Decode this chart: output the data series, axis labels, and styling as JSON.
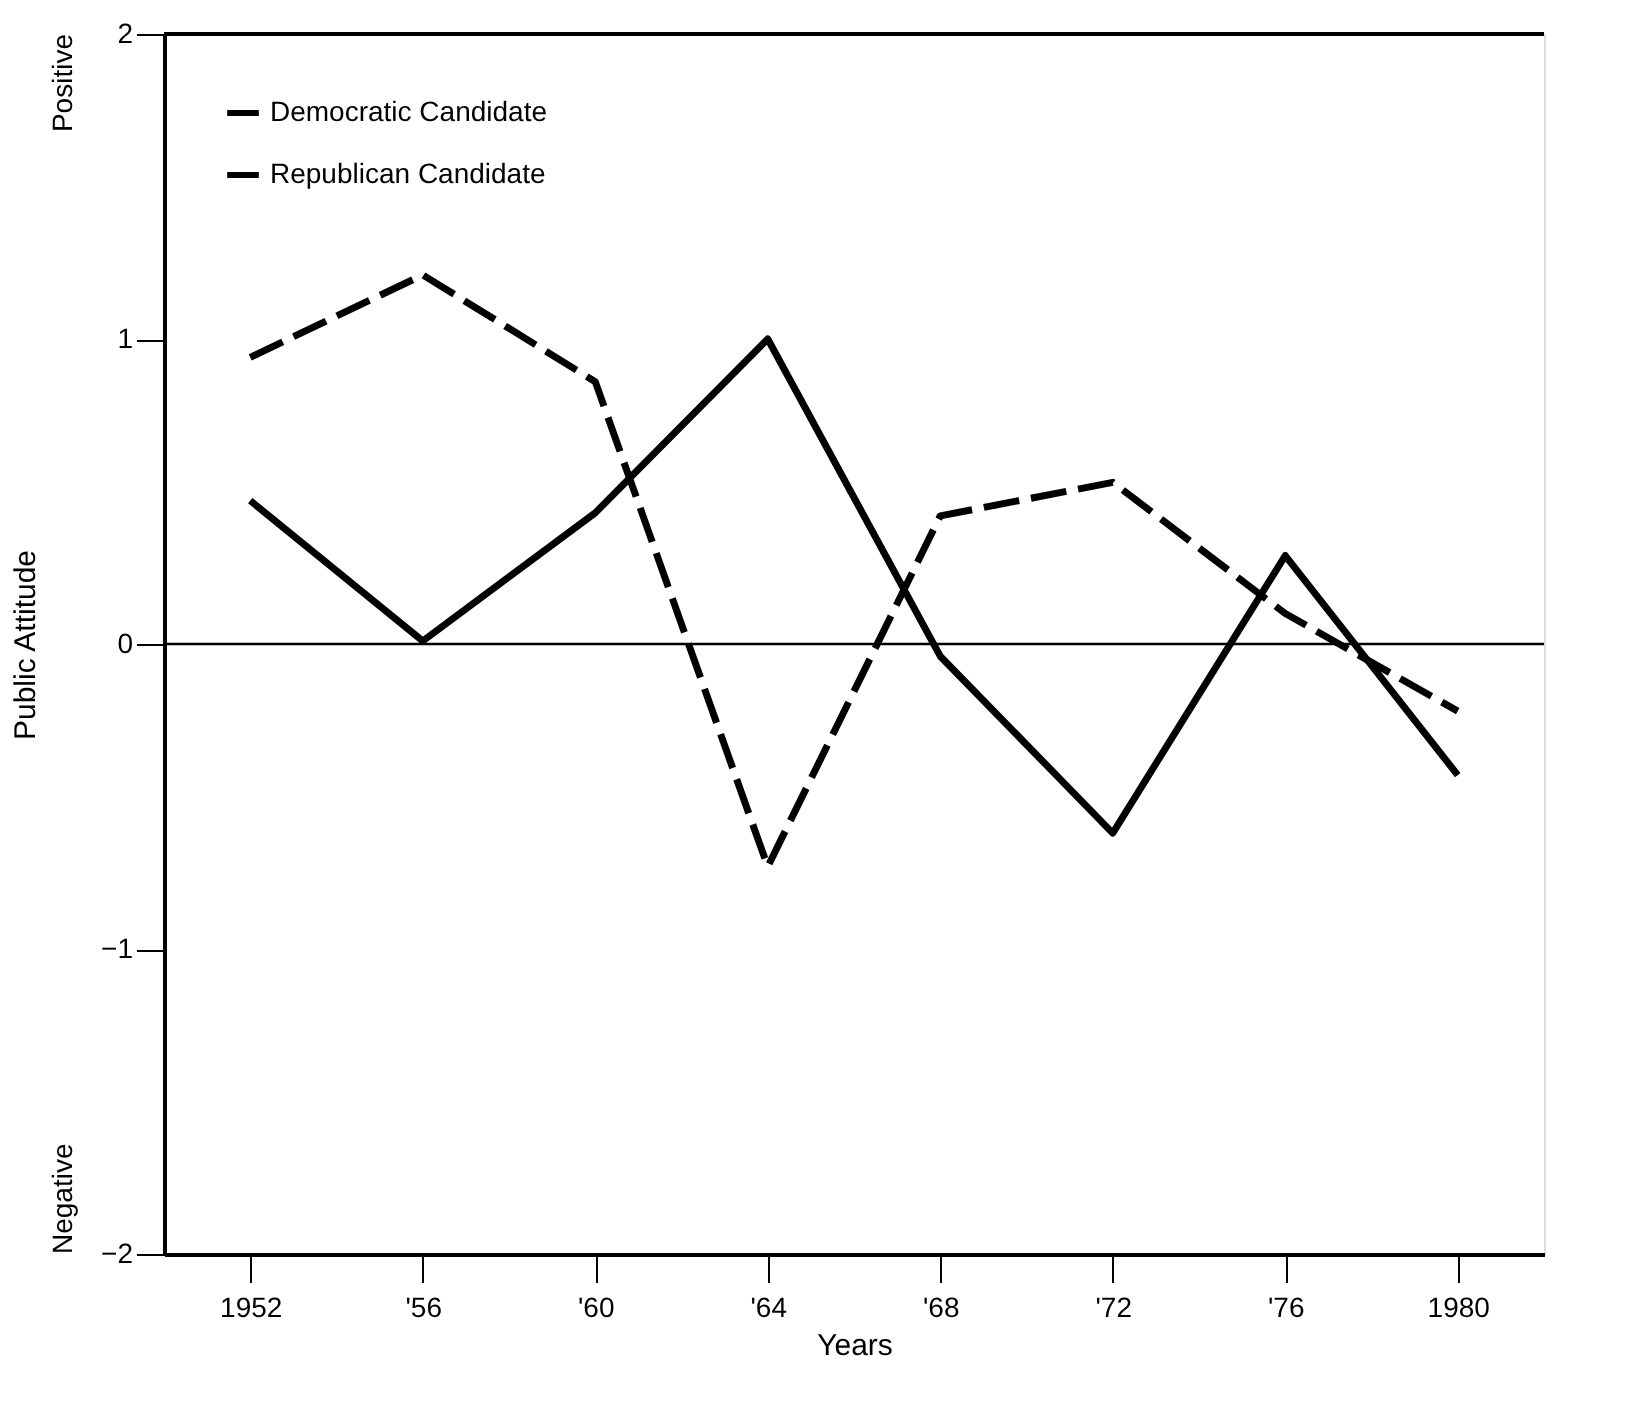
{
  "chart_data": {
    "type": "line",
    "xlabel": "Years",
    "ylabel": "Public Attitude",
    "categories": [
      "1952",
      "'56",
      "'60",
      "'64",
      "'68",
      "'72",
      "'76",
      "1980"
    ],
    "series": [
      {
        "name": "Democratic Candidate",
        "color": "#000000",
        "line_style": "solid",
        "values": [
          0.47,
          0.01,
          0.43,
          1.0,
          -0.04,
          -0.62,
          0.29,
          -0.43
        ]
      },
      {
        "name": "Republican Candidate",
        "color": "#000000",
        "line_style": "dashed",
        "values": [
          0.94,
          1.21,
          0.86,
          -0.73,
          0.42,
          0.53,
          0.1,
          -0.22
        ]
      }
    ],
    "ylim": [
      -2,
      2
    ],
    "yticks": [
      -2,
      -1,
      0,
      1,
      2
    ],
    "ref_lines": [
      {
        "axis": "y",
        "value": 0
      }
    ],
    "annotations": [
      "Positive",
      "Negative"
    ],
    "legend": "top left",
    "grid": false,
    "marker": "none"
  }
}
